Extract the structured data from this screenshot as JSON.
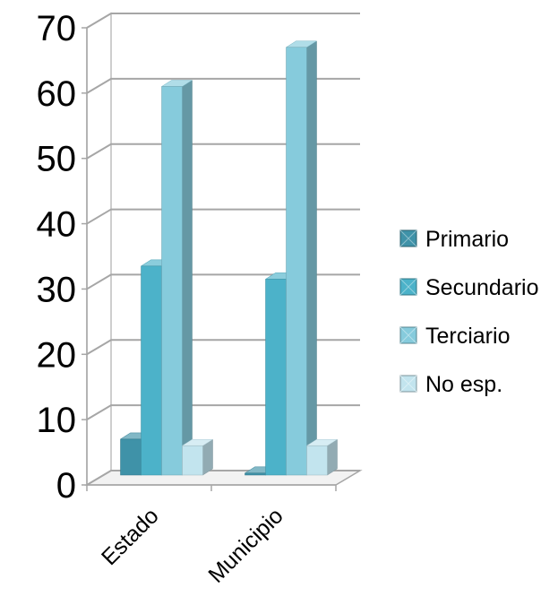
{
  "chart_data": {
    "type": "bar",
    "categories": [
      "Estado",
      "Municipio"
    ],
    "series": [
      {
        "name": "Primario",
        "values": [
          5.5,
          0.3
        ],
        "color": "#3f92a8"
      },
      {
        "name": "Secundario",
        "values": [
          32,
          30
        ],
        "color": "#4cb2c9"
      },
      {
        "name": "Terciario",
        "values": [
          59.5,
          65.5
        ],
        "color": "#86cbdc"
      },
      {
        "name": "No esp.",
        "values": [
          4.5,
          4.5
        ],
        "color": "#c2e4ee"
      }
    ],
    "ylim": [
      0,
      70
    ],
    "yticks": [
      "0",
      "10",
      "20",
      "30",
      "40",
      "50",
      "60",
      "70"
    ],
    "grid": true,
    "legend": "right",
    "three_d": true
  }
}
